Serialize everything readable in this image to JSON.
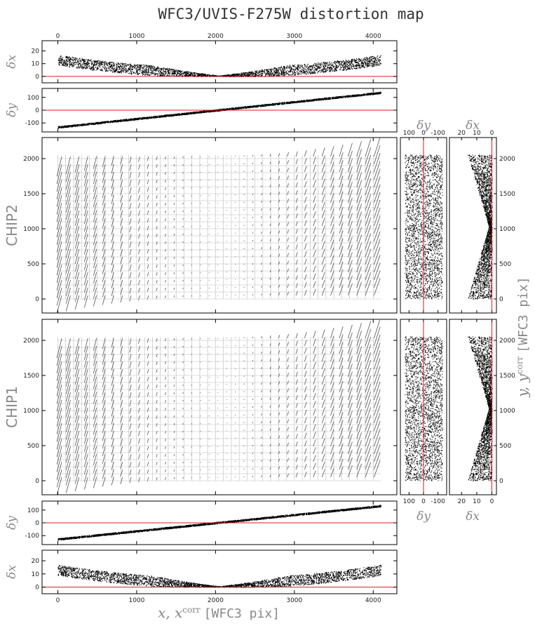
{
  "title": "WFC3/UVIS-F275W distortion map",
  "axis_labels": {
    "x_main": "x, x",
    "x_main_sup": "corr",
    "x_main_unit": "[WFC3 pix]",
    "y_main": "y, y",
    "y_main_sup": "corr",
    "y_main_unit": "[WFC3 pix]",
    "dx": "δx",
    "dy": "δy"
  },
  "chip_labels": {
    "chip2": "CHIP2",
    "chip1": "CHIP1"
  },
  "colors": {
    "reference_line": "#e31a1c",
    "points": "#000000",
    "vectors": "#555555",
    "grid": "#bbbbbb",
    "label": "#888888"
  },
  "chart_data": [
    {
      "type": "scatter",
      "panel": "top dx vs x",
      "xlabel": "",
      "ylabel": "δx",
      "xlim": [
        -200,
        4300
      ],
      "ylim": [
        -5,
        28
      ],
      "xticks": [
        0,
        1000,
        2000,
        3000,
        4000
      ],
      "yticks": [
        0,
        10,
        20
      ],
      "reference_line": 0,
      "shape": "parabola",
      "vertex_x": 2048,
      "edge_value_at_0": 10,
      "edge_value_at_4096": 10.5,
      "scatter_width": 8,
      "grid": false
    },
    {
      "type": "scatter",
      "panel": "top dy vs x",
      "xlabel": "",
      "ylabel": "δy",
      "xlim": [
        -200,
        4300
      ],
      "ylim": [
        -170,
        170
      ],
      "yticks": [
        -100,
        0,
        100
      ],
      "reference_line": 0,
      "shape": "linear",
      "value_at_0": -135,
      "value_at_4096": 135,
      "grid": false
    },
    {
      "type": "vector_field",
      "panel": "CHIP2",
      "xlim": [
        -200,
        4300
      ],
      "ylim": [
        -200,
        2300
      ],
      "yticks": [
        0,
        500,
        1000,
        1500,
        2000
      ],
      "grid_x": [
        0,
        4096
      ],
      "grid_y": [
        0,
        2051
      ],
      "grid_spacing": 100,
      "grid": true
    },
    {
      "type": "vector_field",
      "panel": "CHIP1",
      "xlim": [
        -200,
        4300
      ],
      "ylim": [
        -200,
        2300
      ],
      "yticks": [
        0,
        500,
        1000,
        1500,
        2000
      ],
      "grid_x": [
        0,
        4096
      ],
      "grid_y": [
        0,
        2051
      ],
      "grid_spacing": 100,
      "grid": true
    },
    {
      "type": "scatter",
      "panel": "bottom dy vs x",
      "xlabel": "",
      "ylabel": "δy",
      "xlim": [
        -200,
        4300
      ],
      "ylim": [
        -170,
        170
      ],
      "yticks": [
        -100,
        0,
        100
      ],
      "reference_line": 0,
      "shape": "linear",
      "value_at_0": -130,
      "value_at_4096": 130,
      "grid": false
    },
    {
      "type": "scatter",
      "panel": "bottom dx vs x",
      "xlabel": "x, x corr [WFC3 pix]",
      "ylabel": "δx",
      "xlim": [
        -200,
        4300
      ],
      "ylim": [
        -5,
        28
      ],
      "xticks": [
        0,
        1000,
        2000,
        3000,
        4000
      ],
      "yticks": [
        0,
        10,
        20
      ],
      "reference_line": 0,
      "shape": "parabola",
      "vertex_x": 2048,
      "edge_value_at_0": 10,
      "edge_value_at_4096": 10.5,
      "scatter_width": 8,
      "grid": false
    },
    {
      "type": "scatter",
      "panel": "CHIP2 dy vs y",
      "xlabel": "δy",
      "xticks": [
        100,
        0,
        -100
      ],
      "xlim": [
        160,
        -160
      ],
      "ylim": [
        -200,
        2300
      ],
      "reference_line": 0,
      "scatter_range": [
        -130,
        130
      ],
      "grid": false
    },
    {
      "type": "scatter",
      "panel": "CHIP2 dx vs y",
      "xlabel": "δx",
      "xticks": [
        20,
        10,
        0
      ],
      "xlim": [
        28,
        -3
      ],
      "ylim": [
        -200,
        2300
      ],
      "reference_line": 0,
      "scatter_range": [
        0,
        20
      ],
      "waist_y": 1025,
      "yticks": [
        0,
        500,
        1000,
        1500,
        2000
      ],
      "ylabel": "y, y corr [WFC3 pix]",
      "grid": false
    },
    {
      "type": "scatter",
      "panel": "CHIP1 dy vs y",
      "xlabel": "δy",
      "xticks": [
        100,
        0,
        -100
      ],
      "xlim": [
        160,
        -160
      ],
      "ylim": [
        -200,
        2300
      ],
      "reference_line": 0,
      "scatter_range": [
        -130,
        130
      ],
      "grid": false
    },
    {
      "type": "scatter",
      "panel": "CHIP1 dx vs y",
      "xlabel": "δx",
      "xticks": [
        20,
        10,
        0
      ],
      "xlim": [
        28,
        -3
      ],
      "ylim": [
        -200,
        2300
      ],
      "reference_line": 0,
      "scatter_range": [
        0,
        20
      ],
      "waist_y": 1025,
      "yticks": [
        0,
        500,
        1000,
        1500,
        2000
      ],
      "grid": false
    }
  ]
}
